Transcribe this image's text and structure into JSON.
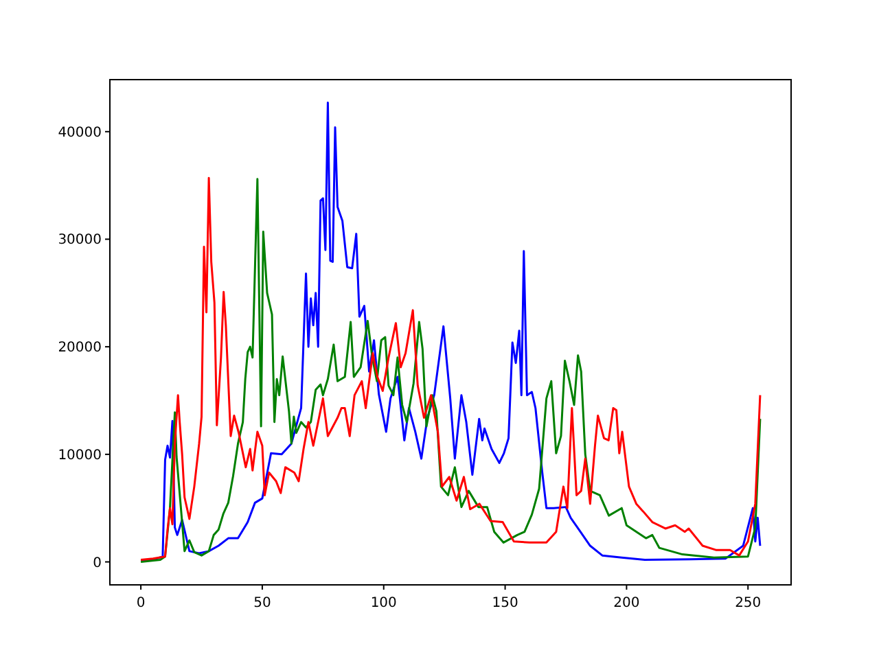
{
  "chart_data": {
    "type": "line",
    "xlim": [
      -12.75,
      267.75
    ],
    "ylim": [
      -2135,
      44835
    ],
    "xticks": [
      0,
      50,
      100,
      150,
      200,
      250
    ],
    "yticks": [
      0,
      10000,
      20000,
      30000,
      40000
    ],
    "grid": false,
    "marker": "none",
    "line_style": "solid",
    "series": [
      {
        "color": "#0000ff",
        "x": [
          0,
          5,
          9,
          10,
          11,
          12,
          13,
          14,
          15,
          17,
          20,
          24,
          28,
          32,
          36,
          40,
          44,
          47,
          50,
          53.6,
          58,
          62,
          66,
          68,
          69,
          70,
          71,
          72,
          73,
          74,
          75,
          76,
          77,
          78,
          79,
          80,
          81,
          83,
          85,
          87,
          88.7,
          90,
          92,
          94,
          96,
          98,
          101,
          102.8,
          105.7,
          108.5,
          110.4,
          113,
          115.5,
          118,
          120.8,
          124.6,
          127.4,
          129.3,
          132,
          134,
          136.5,
          139.3,
          140.6,
          141.5,
          144.4,
          147.6,
          149.5,
          151.4,
          153,
          154.4,
          155.8,
          156.7,
          157.7,
          159,
          161,
          162.5,
          165.3,
          167,
          170,
          175,
          177,
          181,
          185,
          190,
          198,
          207.5,
          226,
          240.7,
          248,
          252,
          253,
          254,
          255
        ],
        "values": [
          200,
          200,
          500,
          9500,
          10800,
          9700,
          13100,
          3200,
          2500,
          3900,
          1000,
          800,
          1000,
          1500,
          2200,
          2200,
          3700,
          5500,
          5900,
          10100,
          10000,
          11000,
          14300,
          26800,
          20000,
          24500,
          22000,
          25000,
          20000,
          33600,
          33800,
          29000,
          42700,
          28000,
          27900,
          40400,
          33000,
          31700,
          27400,
          27300,
          30500,
          22800,
          23800,
          17700,
          20600,
          15600,
          12100,
          15200,
          17200,
          11300,
          14300,
          12100,
          9600,
          13400,
          15500,
          21900,
          15200,
          9600,
          15500,
          13000,
          8100,
          13300,
          11300,
          12400,
          10500,
          9200,
          10100,
          11500,
          20400,
          18500,
          21500,
          15500,
          28900,
          15500,
          15800,
          14300,
          8300,
          5000,
          5000,
          5100,
          4100,
          2800,
          1500,
          600,
          400,
          200,
          250,
          300,
          1500,
          5000,
          1900,
          4100,
          1500
        ]
      },
      {
        "color": "#008000",
        "x": [
          0,
          8,
          10,
          12,
          14,
          14.7,
          18,
          20,
          22,
          25,
          28,
          30,
          32,
          34,
          36,
          38,
          40,
          42,
          43,
          44,
          45,
          46,
          48,
          49.5,
          50.4,
          52,
          53,
          54,
          55,
          56,
          57,
          58.4,
          61,
          62,
          63,
          64,
          66,
          68,
          70,
          72,
          74,
          75,
          77,
          79.4,
          81,
          84,
          86.4,
          87.7,
          90.5,
          93.4,
          95.3,
          97.2,
          99,
          100.6,
          102,
          104,
          105.7,
          107.6,
          109.5,
          112.3,
          114.6,
          116,
          117.6,
          120,
          121.7,
          123.6,
          126.5,
          129.3,
          132,
          135,
          139,
          142.6,
          145.5,
          149.3,
          155,
          158,
          161,
          164,
          167,
          169,
          171,
          173,
          174.6,
          176.5,
          178.4,
          180,
          181.3,
          183,
          185,
          189,
          192.7,
          198,
          200,
          208,
          210.6,
          213.5,
          223,
          236,
          250,
          253,
          255
        ],
        "values": [
          0,
          200,
          500,
          5000,
          13900,
          9800,
          1000,
          2000,
          900,
          600,
          1000,
          2500,
          3000,
          4500,
          5500,
          8000,
          11000,
          13000,
          17000,
          19500,
          20000,
          19000,
          35600,
          12600,
          30700,
          25000,
          24000,
          23000,
          13000,
          17000,
          15500,
          19100,
          14000,
          11000,
          13500,
          12000,
          13000,
          12500,
          13000,
          16000,
          16500,
          15500,
          17000,
          20200,
          16800,
          17200,
          22300,
          17200,
          18100,
          22400,
          19000,
          16800,
          20600,
          20900,
          16400,
          15500,
          19000,
          14600,
          13000,
          16600,
          22300,
          19800,
          12600,
          15500,
          14000,
          7000,
          6200,
          8800,
          5100,
          6600,
          5100,
          5100,
          2800,
          1800,
          2500,
          2800,
          4400,
          6800,
          15200,
          16800,
          10100,
          11700,
          18700,
          16800,
          14600,
          19200,
          17700,
          10000,
          6600,
          6200,
          4300,
          5000,
          3400,
          2200,
          2500,
          1300,
          700,
          400,
          500,
          3200,
          13300
        ]
      },
      {
        "color": "#ff0000",
        "x": [
          0,
          5,
          10,
          11,
          12,
          13,
          14,
          15.3,
          16,
          17,
          18,
          20,
          22,
          24,
          25,
          26,
          27,
          28,
          29,
          30.3,
          31.3,
          33,
          34.1,
          35,
          37,
          38.4,
          40.3,
          43.2,
          45,
          46,
          48,
          50,
          51,
          52.8,
          55.7,
          57.6,
          59.5,
          63.2,
          65,
          67,
          69,
          71,
          75,
          77,
          81,
          82.6,
          84,
          86,
          88,
          91,
          92.6,
          95.5,
          97.4,
          99.6,
          102,
          105,
          107,
          109,
          112,
          114,
          116.6,
          119.5,
          122.3,
          124,
          127,
          130,
          133,
          135.6,
          139.4,
          144,
          149,
          153.6,
          160,
          167,
          171,
          174,
          175.6,
          177.5,
          179.4,
          181.3,
          183,
          185,
          187,
          188.2,
          190.7,
          192.6,
          194.5,
          195.8,
          197,
          198.2,
          201,
          204,
          206.8,
          210.6,
          216,
          220,
          224,
          225.6,
          231.3,
          237,
          242.6,
          246.4,
          250,
          253,
          255
        ],
        "values": [
          200,
          300,
          500,
          3000,
          5000,
          3500,
          11000,
          15500,
          13000,
          10000,
          6000,
          4000,
          7000,
          11000,
          13500,
          29300,
          23200,
          35700,
          27900,
          24100,
          12700,
          19000,
          25100,
          22000,
          11700,
          13600,
          12000,
          8800,
          10500,
          8500,
          12100,
          10800,
          6200,
          8300,
          7500,
          6400,
          8800,
          8300,
          7500,
          10500,
          13000,
          10800,
          15200,
          11700,
          13400,
          14300,
          14300,
          11700,
          15500,
          16800,
          14300,
          19400,
          17200,
          15900,
          19000,
          22200,
          18100,
          19400,
          23400,
          16400,
          13400,
          15500,
          12100,
          7000,
          7900,
          5700,
          7900,
          4900,
          5400,
          3800,
          3700,
          1900,
          1800,
          1800,
          2800,
          7000,
          5000,
          14300,
          6200,
          6600,
          9600,
          5400,
          10800,
          13600,
          11500,
          11300,
          14300,
          14100,
          10100,
          12100,
          7000,
          5400,
          4700,
          3700,
          3100,
          3400,
          2800,
          3100,
          1500,
          1100,
          1100,
          600,
          1900,
          5400,
          15500
        ]
      }
    ]
  }
}
